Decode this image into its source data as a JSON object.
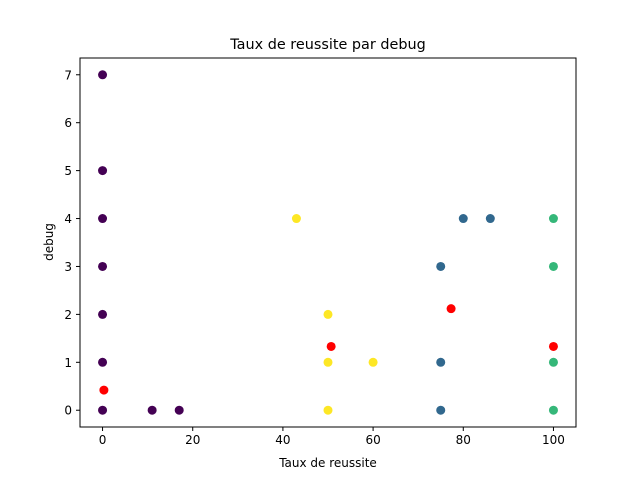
{
  "chart_data": {
    "type": "scatter",
    "title": "Taux de reussite par debug",
    "xlabel": "Taux de reussite",
    "ylabel": "debug",
    "xlim": [
      -5,
      105
    ],
    "ylim": [
      -0.35,
      7.35
    ],
    "xticks": [
      0,
      20,
      40,
      60,
      80,
      100
    ],
    "yticks": [
      0,
      1,
      2,
      3,
      4,
      5,
      6,
      7
    ],
    "grid": false,
    "colors": {
      "purple": "#440154",
      "blue": "#31688e",
      "green": "#35b779",
      "yellow": "#fde725",
      "red": "#ff0000"
    },
    "points": [
      {
        "x": 0,
        "y": 7,
        "color": "#440154"
      },
      {
        "x": 0,
        "y": 5,
        "color": "#440154"
      },
      {
        "x": 0,
        "y": 4,
        "color": "#440154"
      },
      {
        "x": 0,
        "y": 3,
        "color": "#440154"
      },
      {
        "x": 0,
        "y": 2,
        "color": "#440154"
      },
      {
        "x": 0,
        "y": 1,
        "color": "#440154"
      },
      {
        "x": 0,
        "y": 0,
        "color": "#440154"
      },
      {
        "x": 11,
        "y": 0,
        "color": "#440154"
      },
      {
        "x": 17,
        "y": 0,
        "color": "#440154"
      },
      {
        "x": 0.3,
        "y": 0.42,
        "color": "#ff0000"
      },
      {
        "x": 43,
        "y": 4,
        "color": "#fde725"
      },
      {
        "x": 50,
        "y": 2,
        "color": "#fde725"
      },
      {
        "x": 50,
        "y": 1,
        "color": "#fde725"
      },
      {
        "x": 50,
        "y": 0,
        "color": "#fde725"
      },
      {
        "x": 60,
        "y": 1,
        "color": "#fde725"
      },
      {
        "x": 50.7,
        "y": 1.33,
        "color": "#ff0000"
      },
      {
        "x": 77.3,
        "y": 2.12,
        "color": "#ff0000"
      },
      {
        "x": 100,
        "y": 1.33,
        "color": "#ff0000"
      },
      {
        "x": 75,
        "y": 3,
        "color": "#31688e"
      },
      {
        "x": 75,
        "y": 1,
        "color": "#31688e"
      },
      {
        "x": 75,
        "y": 0,
        "color": "#31688e"
      },
      {
        "x": 80,
        "y": 4,
        "color": "#31688e"
      },
      {
        "x": 86,
        "y": 4,
        "color": "#31688e"
      },
      {
        "x": 100,
        "y": 4,
        "color": "#35b779"
      },
      {
        "x": 100,
        "y": 3,
        "color": "#35b779"
      },
      {
        "x": 100,
        "y": 1,
        "color": "#35b779"
      },
      {
        "x": 100,
        "y": 0,
        "color": "#35b779"
      }
    ]
  }
}
